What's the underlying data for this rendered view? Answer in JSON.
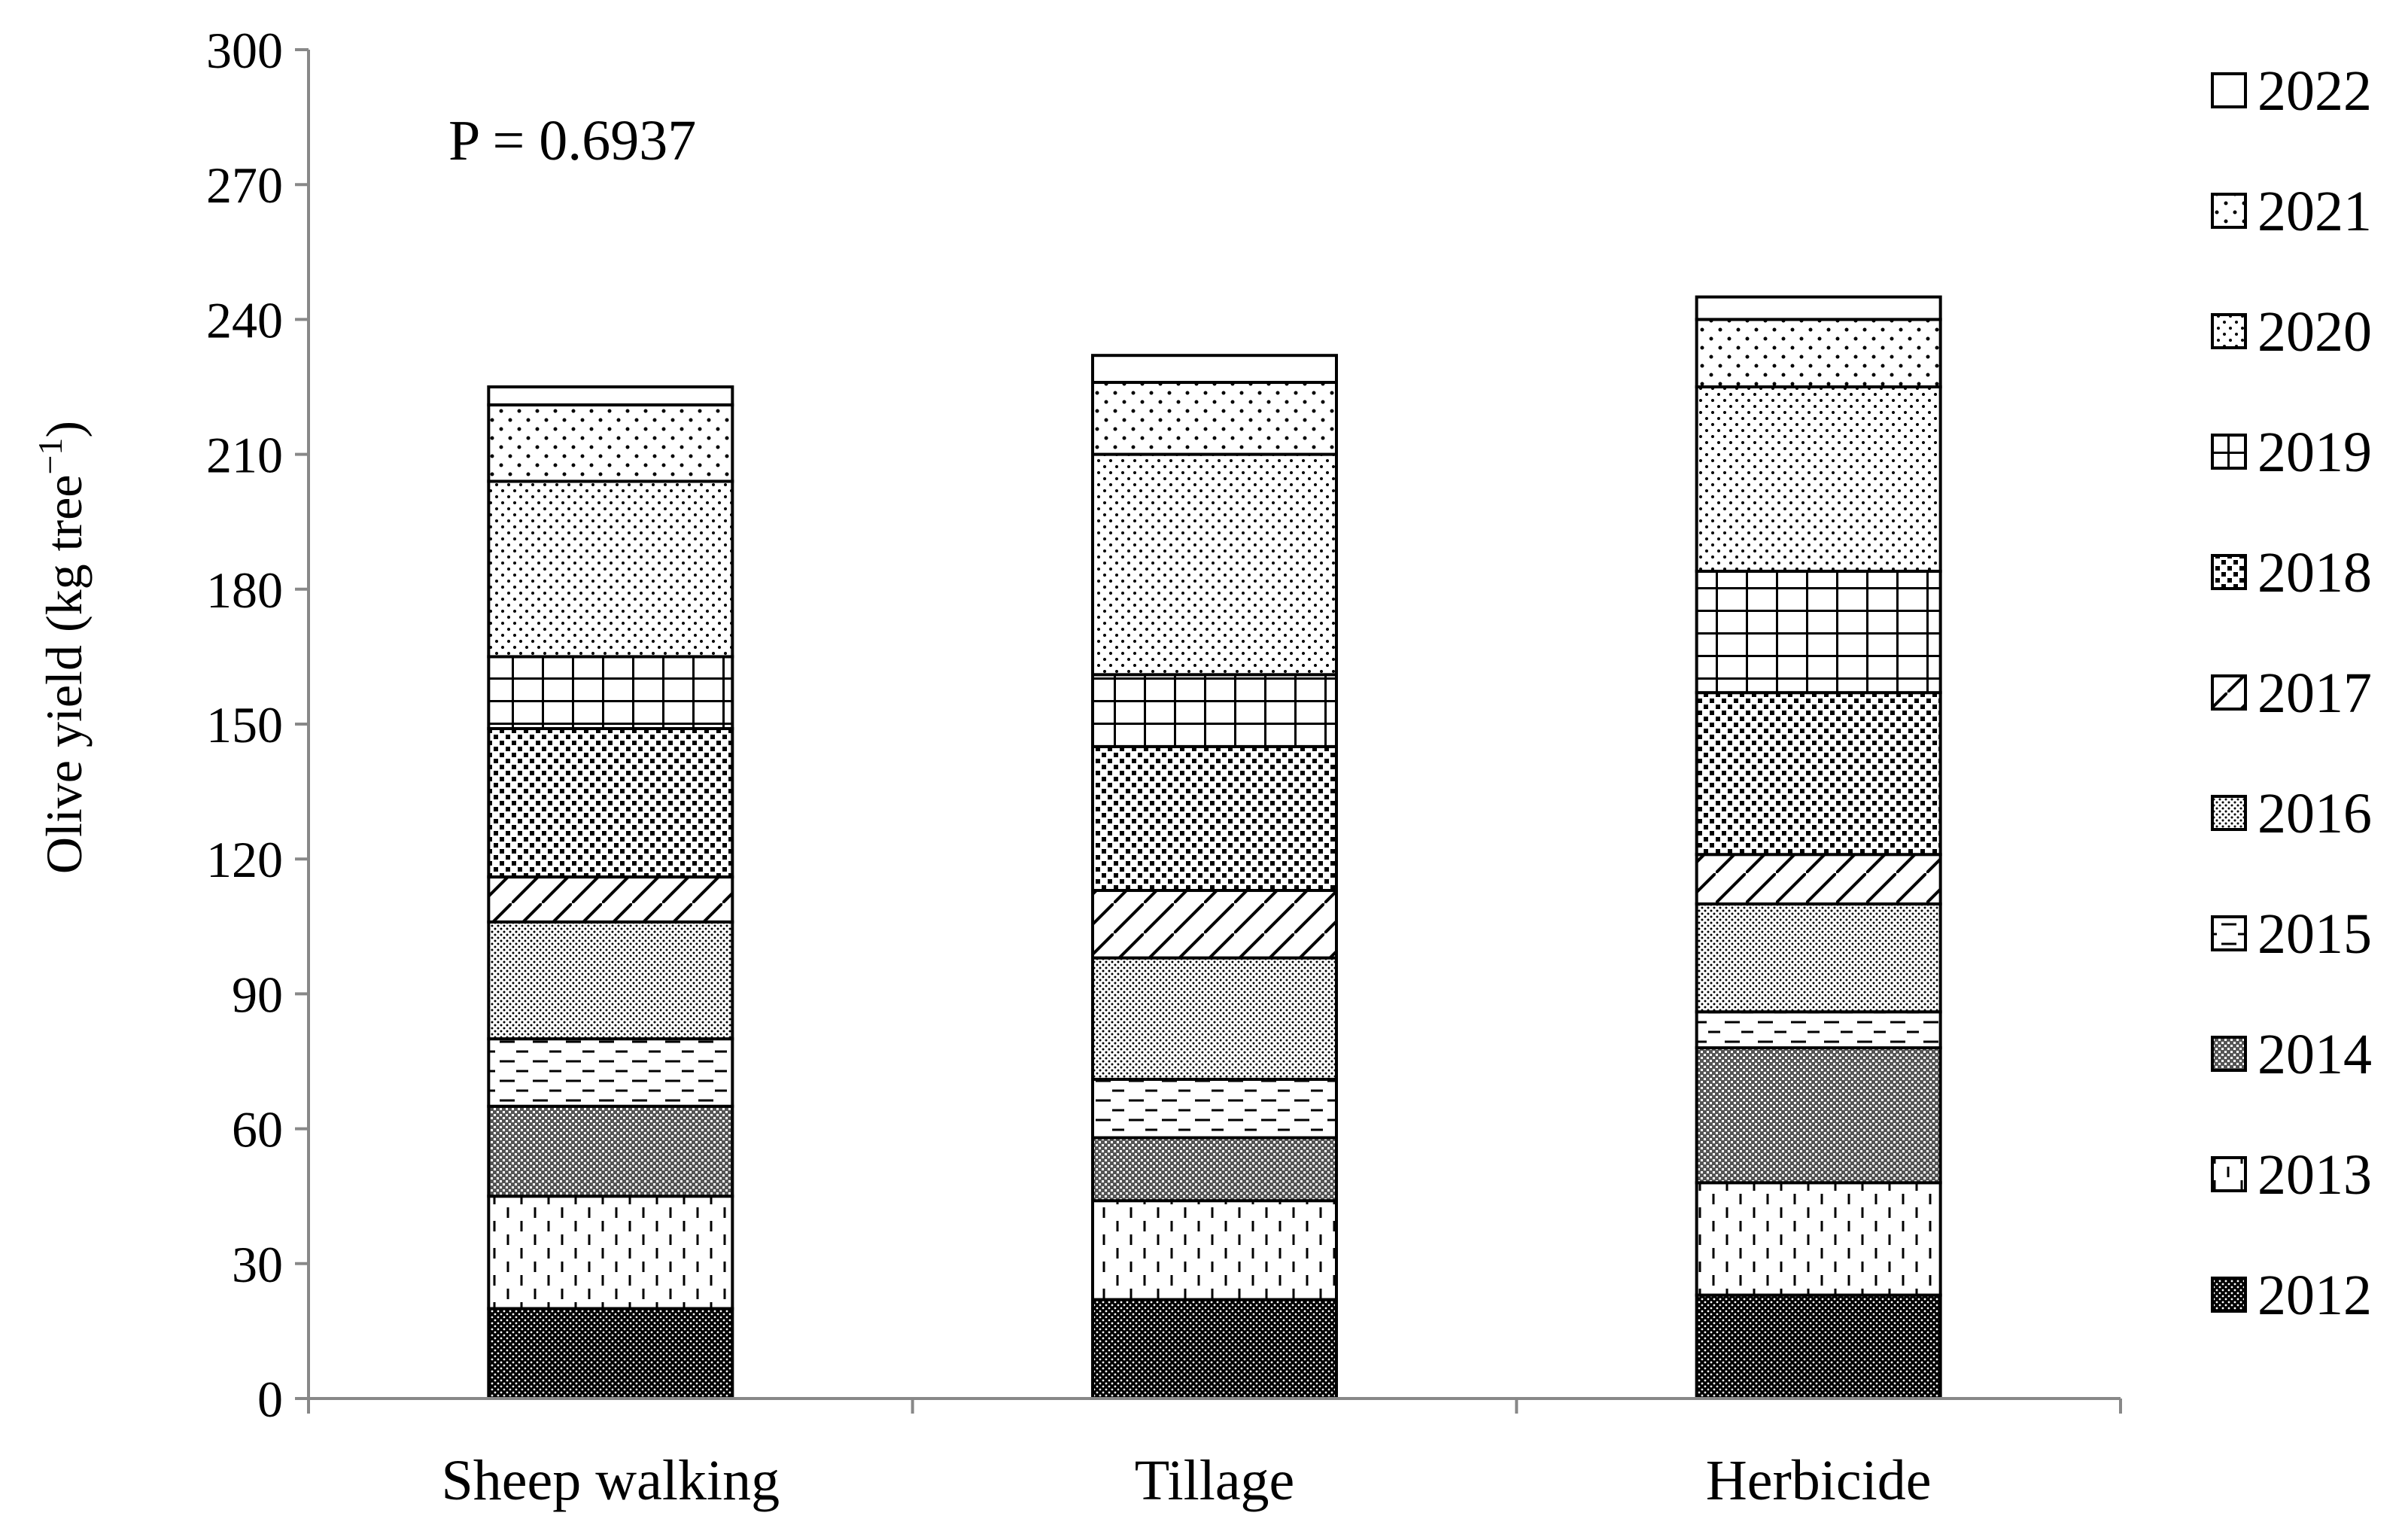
{
  "chart_data": {
    "type": "bar",
    "stacked": true,
    "categories": [
      "Sheep walking",
      "Tillage",
      "Herbicide"
    ],
    "ylabel": "Olive yield (kg tree",
    "ylabel_unit_sup": "−1",
    "ylabel_close": ")",
    "ylim": [
      0,
      300
    ],
    "yticks": [
      0,
      30,
      60,
      90,
      120,
      150,
      180,
      210,
      240,
      270,
      300
    ],
    "annotation": "P = 0.6937",
    "legend_position": "right",
    "series": [
      {
        "name": "2012",
        "pattern": "dense-dots",
        "values": [
          20,
          22,
          23
        ]
      },
      {
        "name": "2013",
        "pattern": "vertical-dashes",
        "values": [
          25,
          22,
          25
        ]
      },
      {
        "name": "2014",
        "pattern": "crosshatch",
        "values": [
          20,
          14,
          30
        ]
      },
      {
        "name": "2015",
        "pattern": "horizontal-dashes",
        "values": [
          15,
          13,
          8
        ]
      },
      {
        "name": "2016",
        "pattern": "fine-dots",
        "values": [
          26,
          27,
          24
        ]
      },
      {
        "name": "2017",
        "pattern": "diagonal",
        "values": [
          10,
          15,
          11
        ]
      },
      {
        "name": "2018",
        "pattern": "checker",
        "values": [
          33,
          32,
          36
        ]
      },
      {
        "name": "2019",
        "pattern": "grid",
        "values": [
          16,
          16,
          27
        ]
      },
      {
        "name": "2020",
        "pattern": "sparse-dots",
        "values": [
          39,
          49,
          41
        ]
      },
      {
        "name": "2021",
        "pattern": "wide-dots",
        "values": [
          17,
          16,
          15
        ]
      },
      {
        "name": "2022",
        "pattern": "blank",
        "values": [
          4,
          6,
          5
        ]
      }
    ]
  }
}
